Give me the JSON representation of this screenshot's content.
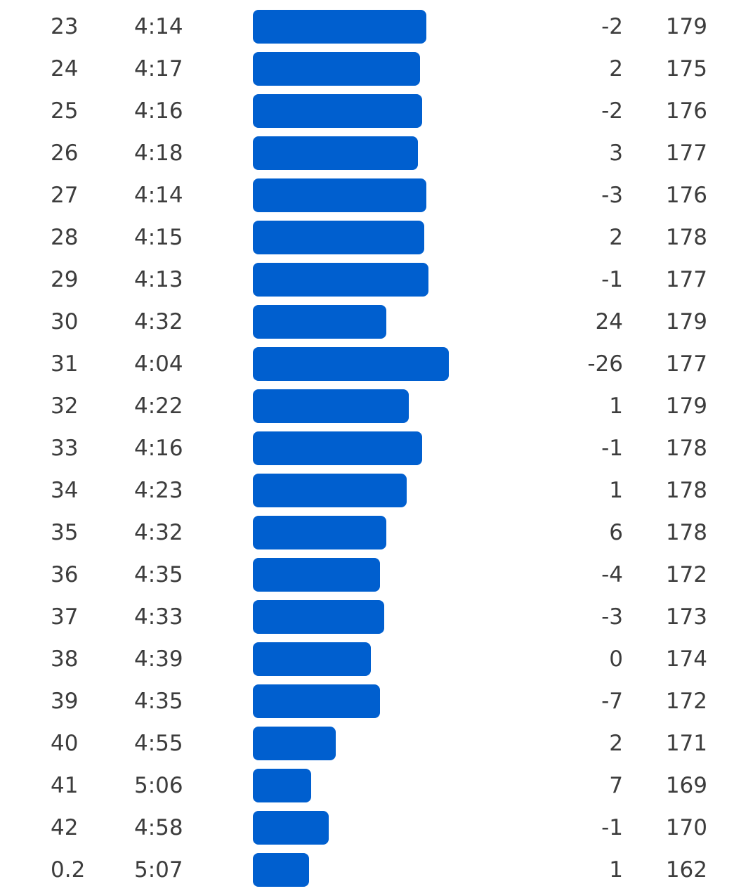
{
  "colors": {
    "bar": "#005fcf",
    "text": "#3d3d3d",
    "background": "#ffffff"
  },
  "pace_scale_seconds": {
    "slowest": 319,
    "fastest": 224
  },
  "splits": [
    {
      "km": "23",
      "pace": "4:14",
      "elev": "-2",
      "cadence": "179"
    },
    {
      "km": "24",
      "pace": "4:17",
      "elev": "2",
      "cadence": "175"
    },
    {
      "km": "25",
      "pace": "4:16",
      "elev": "-2",
      "cadence": "176"
    },
    {
      "km": "26",
      "pace": "4:18",
      "elev": "3",
      "cadence": "177"
    },
    {
      "km": "27",
      "pace": "4:14",
      "elev": "-3",
      "cadence": "176"
    },
    {
      "km": "28",
      "pace": "4:15",
      "elev": "2",
      "cadence": "178"
    },
    {
      "km": "29",
      "pace": "4:13",
      "elev": "-1",
      "cadence": "177"
    },
    {
      "km": "30",
      "pace": "4:32",
      "elev": "24",
      "cadence": "179"
    },
    {
      "km": "31",
      "pace": "4:04",
      "elev": "-26",
      "cadence": "177"
    },
    {
      "km": "32",
      "pace": "4:22",
      "elev": "1",
      "cadence": "179"
    },
    {
      "km": "33",
      "pace": "4:16",
      "elev": "-1",
      "cadence": "178"
    },
    {
      "km": "34",
      "pace": "4:23",
      "elev": "1",
      "cadence": "178"
    },
    {
      "km": "35",
      "pace": "4:32",
      "elev": "6",
      "cadence": "178"
    },
    {
      "km": "36",
      "pace": "4:35",
      "elev": "-4",
      "cadence": "172"
    },
    {
      "km": "37",
      "pace": "4:33",
      "elev": "-3",
      "cadence": "173"
    },
    {
      "km": "38",
      "pace": "4:39",
      "elev": "0",
      "cadence": "174"
    },
    {
      "km": "39",
      "pace": "4:35",
      "elev": "-7",
      "cadence": "172"
    },
    {
      "km": "40",
      "pace": "4:55",
      "elev": "2",
      "cadence": "171"
    },
    {
      "km": "41",
      "pace": "5:06",
      "elev": "7",
      "cadence": "169"
    },
    {
      "km": "42",
      "pace": "4:58",
      "elev": "-1",
      "cadence": "170"
    },
    {
      "km": "0.2",
      "pace": "5:07",
      "elev": "1",
      "cadence": "162"
    }
  ]
}
